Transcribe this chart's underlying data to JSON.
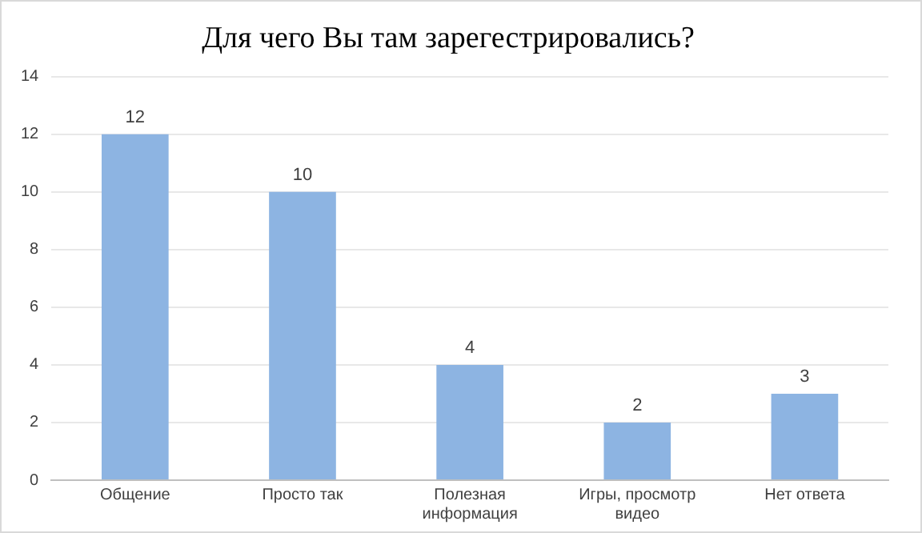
{
  "chart_data": {
    "type": "bar",
    "title": "Для чего Вы там зарегестрировались?",
    "categories": [
      "Общение",
      "Просто так",
      "Полезная информация",
      "Игры, просмотр видео",
      "Нет ответа"
    ],
    "values": [
      12,
      10,
      4,
      2,
      3
    ],
    "color": "#8db4e2",
    "ylim": [
      0,
      14
    ],
    "yticks": [
      0,
      2,
      4,
      6,
      8,
      10,
      12,
      14
    ],
    "grid": "y",
    "data_labels": true
  }
}
